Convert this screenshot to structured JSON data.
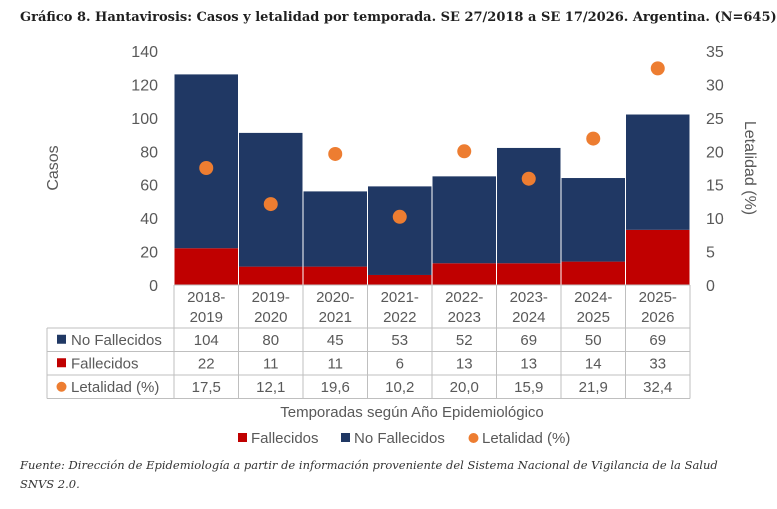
{
  "title": "Gráfico 8. Hantavirosis: Casos y letalidad por temporada. SE 27/2018 a SE 17/2026. Argentina. (N=645)",
  "source": "Fuente: Dirección de Epidemiología a partir de información proveniente del Sistema Nacional de Vigilancia de la Salud SNVS 2.0.",
  "colors": {
    "no_fallecidos": "#203864",
    "fallecidos": "#c00000",
    "letalidad": "#ed7d31",
    "axis_text": "#595959",
    "grid": "#bfbfbf"
  },
  "chart_data": {
    "type": "bar",
    "stacked": true,
    "categories": [
      "2018-2019",
      "2019-2020",
      "2020-2021",
      "2021-2022",
      "2022-2023",
      "2023-2024",
      "2024-2025",
      "2025-2026"
    ],
    "category_lines": [
      [
        "2018-",
        "2019"
      ],
      [
        "2019-",
        "2020"
      ],
      [
        "2020-",
        "2021"
      ],
      [
        "2021-",
        "2022"
      ],
      [
        "2022-",
        "2023"
      ],
      [
        "2023-",
        "2024"
      ],
      [
        "2024-",
        "2025"
      ],
      [
        "2025-",
        "2026"
      ]
    ],
    "series": [
      {
        "name": "No Fallecidos",
        "axis": "left",
        "type": "bar",
        "values": [
          104,
          80,
          45,
          53,
          52,
          69,
          50,
          69
        ],
        "labels": [
          "104",
          "80",
          "45",
          "53",
          "52",
          "69",
          "50",
          "69"
        ]
      },
      {
        "name": "Fallecidos",
        "axis": "left",
        "type": "bar",
        "values": [
          22,
          11,
          11,
          6,
          13,
          13,
          14,
          33
        ],
        "labels": [
          "22",
          "11",
          "11",
          "6",
          "13",
          "13",
          "14",
          "33"
        ]
      },
      {
        "name": "Letalidad (%)",
        "axis": "right",
        "type": "scatter",
        "values": [
          17.5,
          12.1,
          19.6,
          10.2,
          20.0,
          15.9,
          21.9,
          32.4
        ],
        "labels": [
          "17,5",
          "12,1",
          "19,6",
          "10,2",
          "20,0",
          "15,9",
          "21,9",
          "32,4"
        ]
      }
    ],
    "ylabel": "Casos",
    "y2label": "Letalidad (%)",
    "xlabel": "Temporadas según Año Epidemiológico",
    "ylim": [
      0,
      140
    ],
    "y2lim": [
      0,
      35
    ],
    "yticks": [
      0,
      20,
      40,
      60,
      80,
      100,
      120,
      140
    ],
    "y2ticks": [
      0,
      5,
      10,
      15,
      20,
      25,
      30,
      35
    ],
    "legend": [
      "Fallecidos",
      "No Fallecidos",
      "Letalidad (%)"
    ],
    "legend_position": "bottom",
    "data_table": true
  }
}
